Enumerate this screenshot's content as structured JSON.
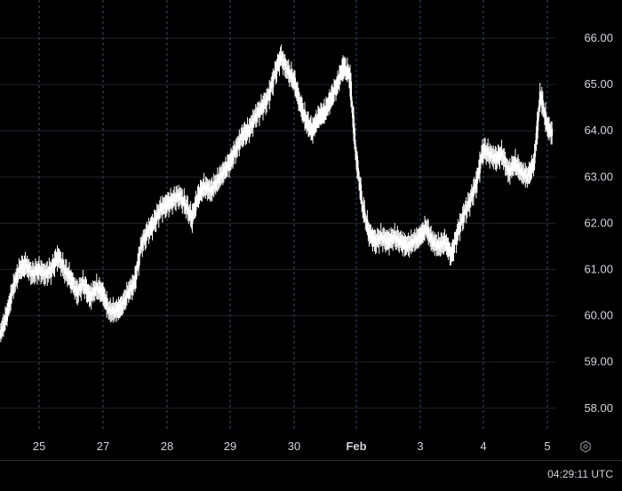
{
  "time_readout": "04:29:11 UTC",
  "icons": {
    "settings": "settings-icon"
  },
  "colors": {
    "background": "#000000",
    "candle": "#ffffff",
    "wick": "#ffffff",
    "grid": "#1f2229",
    "day_separator": "#2f4a6f",
    "text": "#d1d4dc"
  },
  "chart_data": {
    "type": "candlestick",
    "y_ticks": [
      "66.00",
      "65.00",
      "64.00",
      "63.00",
      "62.00",
      "61.00",
      "60.00",
      "59.00",
      "58.00"
    ],
    "ylim": [
      57.55,
      66.7
    ],
    "x_ticks": [
      {
        "label": "25",
        "day": 0,
        "bold": false
      },
      {
        "label": "27",
        "day": 1,
        "bold": false
      },
      {
        "label": "28",
        "day": 2,
        "bold": false
      },
      {
        "label": "29",
        "day": 3,
        "bold": false
      },
      {
        "label": "30",
        "day": 4,
        "bold": false
      },
      {
        "label": "Feb",
        "day": 5,
        "bold": true
      },
      {
        "label": "3",
        "day": 6,
        "bold": false
      },
      {
        "label": "4",
        "day": 7,
        "bold": false
      },
      {
        "label": "5",
        "day": 8,
        "bold": false
      }
    ],
    "grid": true,
    "series": [
      {
        "day": -0.6,
        "close": 59.6
      },
      {
        "day": -0.5,
        "close": 60.0
      },
      {
        "day": -0.4,
        "close": 60.6
      },
      {
        "day": -0.3,
        "close": 61.0
      },
      {
        "day": -0.2,
        "close": 61.1
      },
      {
        "day": -0.1,
        "close": 60.9
      },
      {
        "day": 0.0,
        "close": 61.0
      },
      {
        "day": 0.1,
        "close": 60.9
      },
      {
        "day": 0.2,
        "close": 61.0
      },
      {
        "day": 0.3,
        "close": 61.3
      },
      {
        "day": 0.4,
        "close": 61.0
      },
      {
        "day": 0.5,
        "close": 60.8
      },
      {
        "day": 0.6,
        "close": 60.5
      },
      {
        "day": 0.7,
        "close": 60.7
      },
      {
        "day": 0.8,
        "close": 60.4
      },
      {
        "day": 0.9,
        "close": 60.6
      },
      {
        "day": 1.0,
        "close": 60.5
      },
      {
        "day": 1.1,
        "close": 60.1
      },
      {
        "day": 1.2,
        "close": 60.1
      },
      {
        "day": 1.3,
        "close": 60.2
      },
      {
        "day": 1.4,
        "close": 60.5
      },
      {
        "day": 1.5,
        "close": 60.7
      },
      {
        "day": 1.6,
        "close": 61.5
      },
      {
        "day": 1.7,
        "close": 61.8
      },
      {
        "day": 1.8,
        "close": 62.0
      },
      {
        "day": 1.9,
        "close": 62.3
      },
      {
        "day": 2.0,
        "close": 62.4
      },
      {
        "day": 2.1,
        "close": 62.5
      },
      {
        "day": 2.2,
        "close": 62.6
      },
      {
        "day": 2.3,
        "close": 62.4
      },
      {
        "day": 2.4,
        "close": 62.1
      },
      {
        "day": 2.5,
        "close": 62.6
      },
      {
        "day": 2.6,
        "close": 62.8
      },
      {
        "day": 2.7,
        "close": 62.7
      },
      {
        "day": 2.8,
        "close": 62.9
      },
      {
        "day": 2.9,
        "close": 63.1
      },
      {
        "day": 3.0,
        "close": 63.3
      },
      {
        "day": 3.1,
        "close": 63.6
      },
      {
        "day": 3.2,
        "close": 63.9
      },
      {
        "day": 3.3,
        "close": 64.0
      },
      {
        "day": 3.4,
        "close": 64.3
      },
      {
        "day": 3.5,
        "close": 64.5
      },
      {
        "day": 3.6,
        "close": 64.7
      },
      {
        "day": 3.7,
        "close": 65.2
      },
      {
        "day": 3.8,
        "close": 65.6
      },
      {
        "day": 3.9,
        "close": 65.3
      },
      {
        "day": 4.0,
        "close": 65.1
      },
      {
        "day": 4.1,
        "close": 64.6
      },
      {
        "day": 4.2,
        "close": 64.2
      },
      {
        "day": 4.3,
        "close": 64.0
      },
      {
        "day": 4.4,
        "close": 64.3
      },
      {
        "day": 4.5,
        "close": 64.4
      },
      {
        "day": 4.6,
        "close": 64.7
      },
      {
        "day": 4.7,
        "close": 65.0
      },
      {
        "day": 4.8,
        "close": 65.4
      },
      {
        "day": 4.9,
        "close": 65.2
      },
      {
        "day": 5.0,
        "close": 63.5
      },
      {
        "day": 5.1,
        "close": 62.4
      },
      {
        "day": 5.2,
        "close": 61.8
      },
      {
        "day": 5.3,
        "close": 61.6
      },
      {
        "day": 5.4,
        "close": 61.7
      },
      {
        "day": 5.5,
        "close": 61.6
      },
      {
        "day": 5.6,
        "close": 61.7
      },
      {
        "day": 5.7,
        "close": 61.6
      },
      {
        "day": 5.8,
        "close": 61.5
      },
      {
        "day": 5.9,
        "close": 61.6
      },
      {
        "day": 6.0,
        "close": 61.7
      },
      {
        "day": 6.1,
        "close": 61.9
      },
      {
        "day": 6.2,
        "close": 61.6
      },
      {
        "day": 6.3,
        "close": 61.5
      },
      {
        "day": 6.4,
        "close": 61.6
      },
      {
        "day": 6.5,
        "close": 61.3
      },
      {
        "day": 6.6,
        "close": 61.8
      },
      {
        "day": 6.7,
        "close": 62.2
      },
      {
        "day": 6.8,
        "close": 62.5
      },
      {
        "day": 6.9,
        "close": 62.9
      },
      {
        "day": 7.0,
        "close": 63.6
      },
      {
        "day": 7.1,
        "close": 63.5
      },
      {
        "day": 7.2,
        "close": 63.4
      },
      {
        "day": 7.3,
        "close": 63.5
      },
      {
        "day": 7.4,
        "close": 63.1
      },
      {
        "day": 7.5,
        "close": 63.3
      },
      {
        "day": 7.6,
        "close": 63.1
      },
      {
        "day": 7.7,
        "close": 63.0
      },
      {
        "day": 7.8,
        "close": 63.3
      },
      {
        "day": 7.9,
        "close": 64.8
      },
      {
        "day": 8.0,
        "close": 64.1
      },
      {
        "day": 8.1,
        "close": 63.9
      },
      {
        "day": 8.2,
        "close": 63.5
      }
    ]
  }
}
